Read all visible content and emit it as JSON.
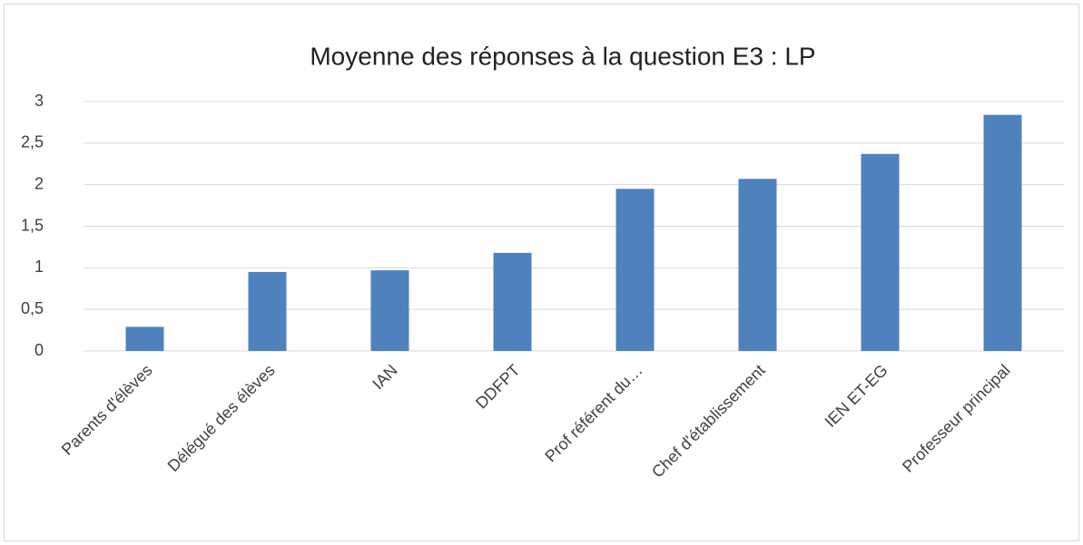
{
  "chart_data": {
    "type": "bar",
    "title": "Moyenne des réponses à la question E3 : LP",
    "categories": [
      "Parents d'élèves",
      "Délégué des élèves",
      "IAN",
      "DDFPT",
      "Prof référent du…",
      "Chef d'établissement",
      "IEN ET-EG",
      "Professeur principal"
    ],
    "values": [
      0.29,
      0.95,
      0.97,
      1.18,
      1.95,
      2.07,
      2.37,
      2.84
    ],
    "color": "#4f81bd",
    "ylim": [
      0,
      3
    ],
    "yticks": [
      0,
      {
        "value": 0.5,
        "label": "0,5"
      },
      1,
      {
        "value": 1.5,
        "label": "1,5"
      },
      2,
      {
        "value": 2.5,
        "label": "2,5"
      },
      3
    ],
    "grid": true
  }
}
